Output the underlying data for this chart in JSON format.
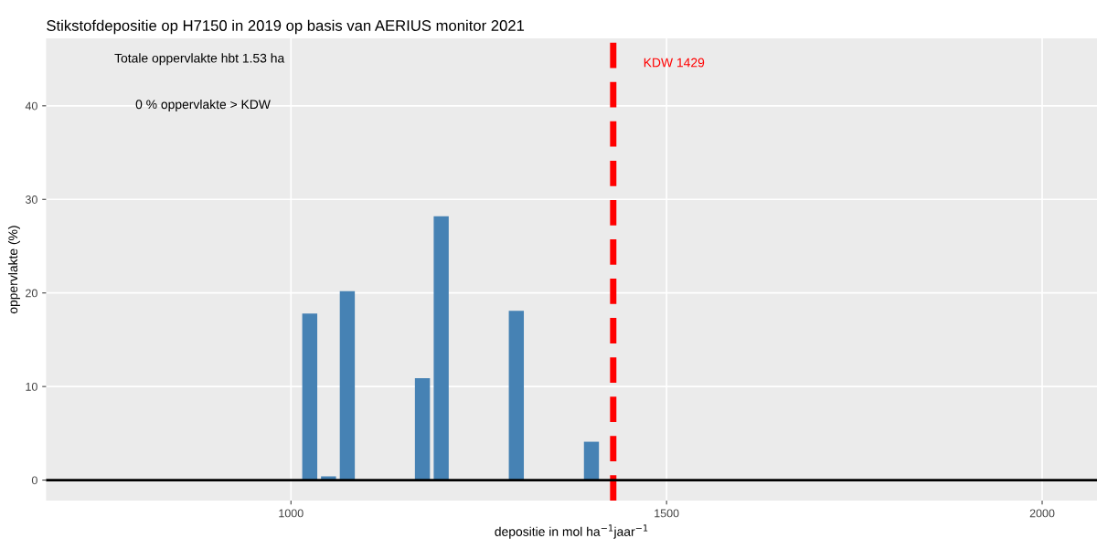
{
  "chart_data": {
    "type": "bar",
    "title": "Stikstofdepositie op H7150 in 2019 op basis van AERIUS monitor 2021",
    "xlabel": "depositie in mol ha$^{−1}$jaar$^{−1}$",
    "ylabel": "oppervlakte (%)",
    "x": [
      1025,
      1050,
      1075,
      1175,
      1200,
      1300,
      1400
    ],
    "values": [
      17.8,
      0.4,
      20.2,
      10.9,
      28.2,
      18.1,
      4.1
    ],
    "color": "#4682b4",
    "xlim": [
      674,
      2073
    ],
    "ylim": [
      -2.2,
      47.2
    ],
    "xticks": [
      1000,
      1500,
      2000
    ],
    "yticks": [
      0,
      10,
      20,
      30,
      40
    ],
    "grid": true,
    "ref_lines": [
      {
        "axis": "x",
        "value": 1429,
        "label": "KDW 1429",
        "color": "#ff0000",
        "line_style": "dashed"
      },
      {
        "axis": "y",
        "value": 0,
        "label": null,
        "color": "#000000",
        "line_style": "solid"
      }
    ],
    "annotations": [
      "Totale oppervlakte hbt 1.53 ha",
      "0 % oppervlakte > KDW"
    ]
  }
}
